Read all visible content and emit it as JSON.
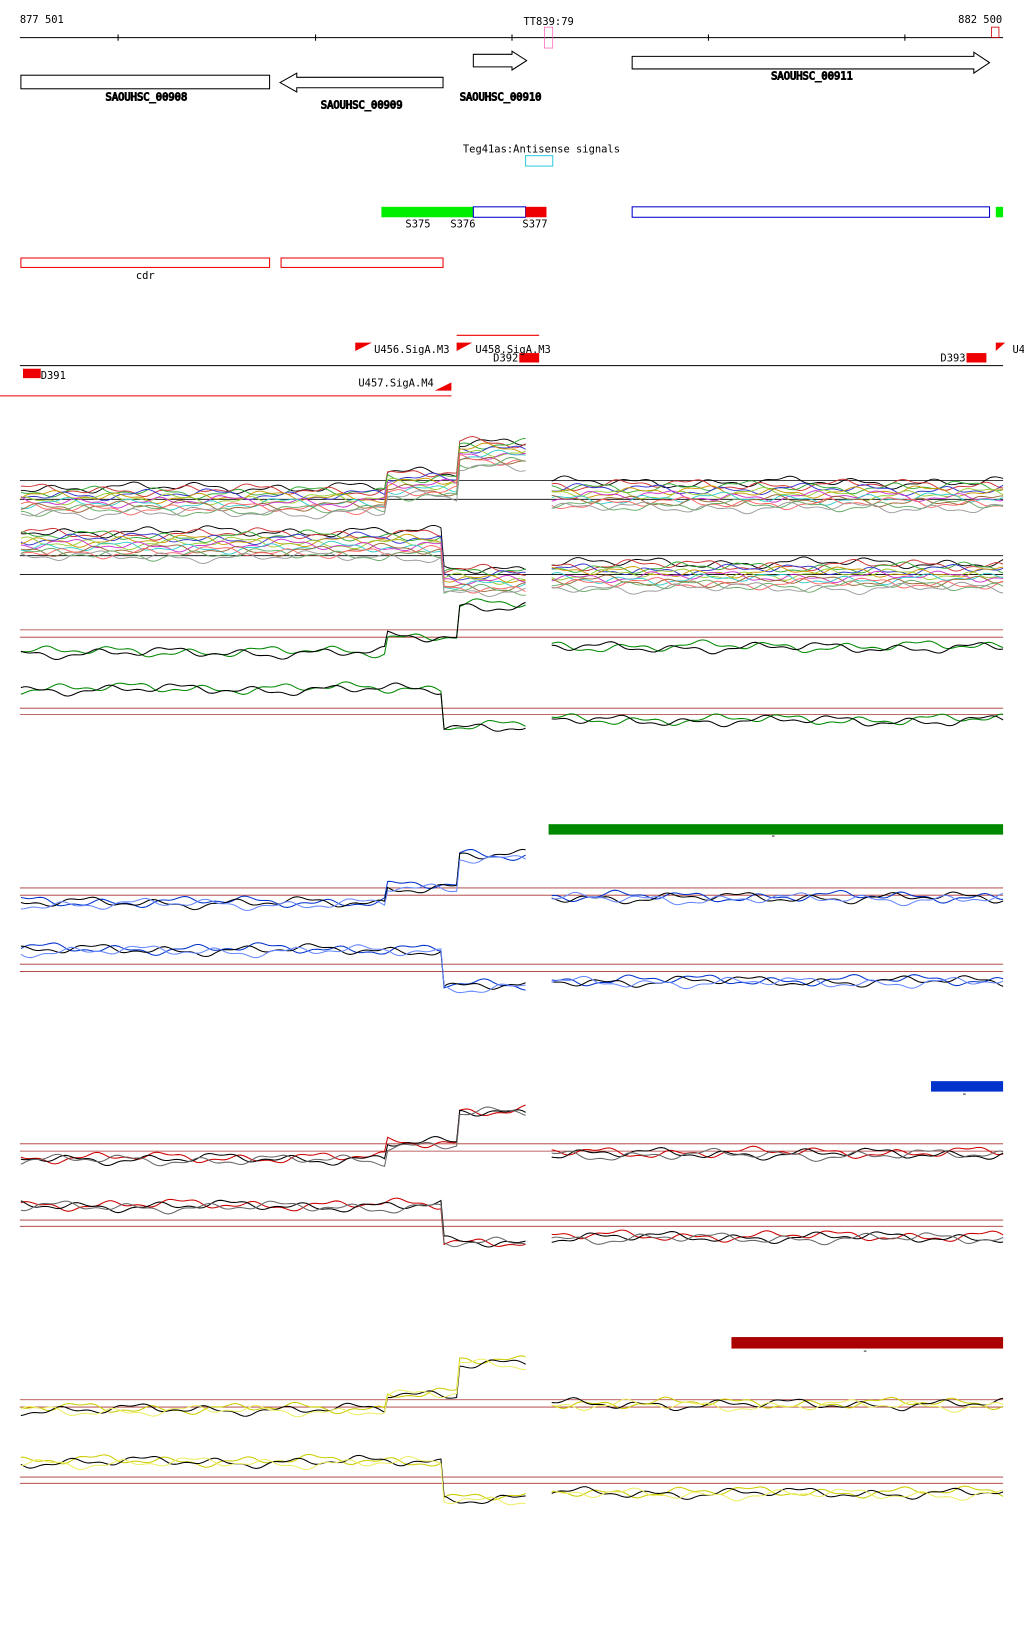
{
  "ruler": {
    "start": "877 501",
    "marker": "TT839:79",
    "end": "882 500"
  },
  "genes": [
    "SAOUHSC_00908",
    "SAOUHSC_00909",
    "SAOUHSC_00910",
    "SAOUHSC_00911"
  ],
  "antisense_label": "Teg41as:Antisense signals",
  "segments": [
    "S375",
    "S376",
    "S377"
  ],
  "cdr_label": "cdr",
  "signals": [
    "U456.SigA.M3",
    "U458.SigA.M3",
    "D392",
    "D391",
    "D393",
    "U457.SigA.M4",
    "U4"
  ],
  "bar_labels": [
    "-",
    "-",
    "-"
  ]
}
